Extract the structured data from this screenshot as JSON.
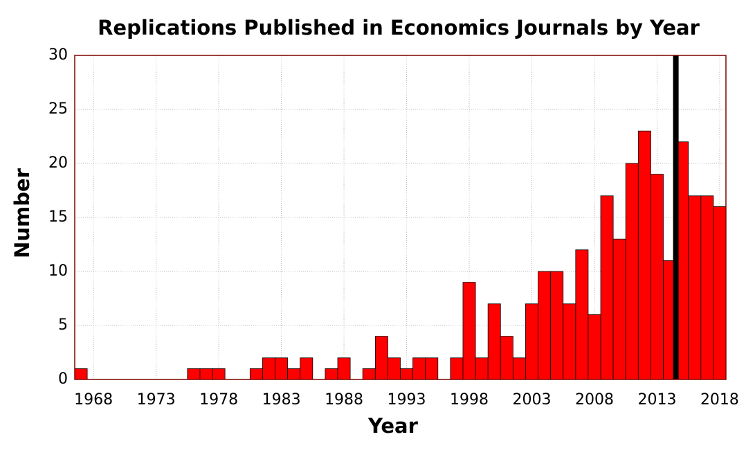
{
  "chart_data": {
    "type": "bar",
    "title": "Replications Published in Economics Journals by Year",
    "xlabel": "Year",
    "ylabel": "Number",
    "x": [
      1967,
      1968,
      1969,
      1970,
      1971,
      1972,
      1973,
      1974,
      1975,
      1976,
      1977,
      1978,
      1979,
      1980,
      1981,
      1982,
      1983,
      1984,
      1985,
      1986,
      1987,
      1988,
      1989,
      1990,
      1991,
      1992,
      1993,
      1994,
      1995,
      1996,
      1997,
      1998,
      1999,
      2000,
      2001,
      2002,
      2003,
      2004,
      2005,
      2006,
      2007,
      2008,
      2009,
      2010,
      2011,
      2012,
      2013,
      2014,
      2015,
      2016,
      2017,
      2018
    ],
    "values": [
      1,
      0,
      0,
      0,
      0,
      0,
      0,
      0,
      0,
      1,
      1,
      1,
      0,
      0,
      1,
      2,
      2,
      1,
      2,
      0,
      1,
      2,
      0,
      1,
      4,
      2,
      1,
      2,
      2,
      0,
      2,
      9,
      2,
      7,
      4,
      2,
      7,
      10,
      10,
      7,
      12,
      6,
      17,
      13,
      20,
      23,
      19,
      11,
      22,
      17,
      17,
      16
    ],
    "color": "#ff0000",
    "edge_color": "#000000",
    "xlim": [
      1966.5,
      2018.5
    ],
    "xticks": [
      1968,
      1973,
      1978,
      1983,
      1988,
      1993,
      1998,
      2003,
      2008,
      2013,
      2018
    ],
    "ylim": [
      0,
      30
    ],
    "yticks": [
      0,
      5,
      10,
      15,
      20,
      25,
      30
    ],
    "grid": true,
    "reference_line_x": 2014.5,
    "reference_line_color": "#000000"
  }
}
